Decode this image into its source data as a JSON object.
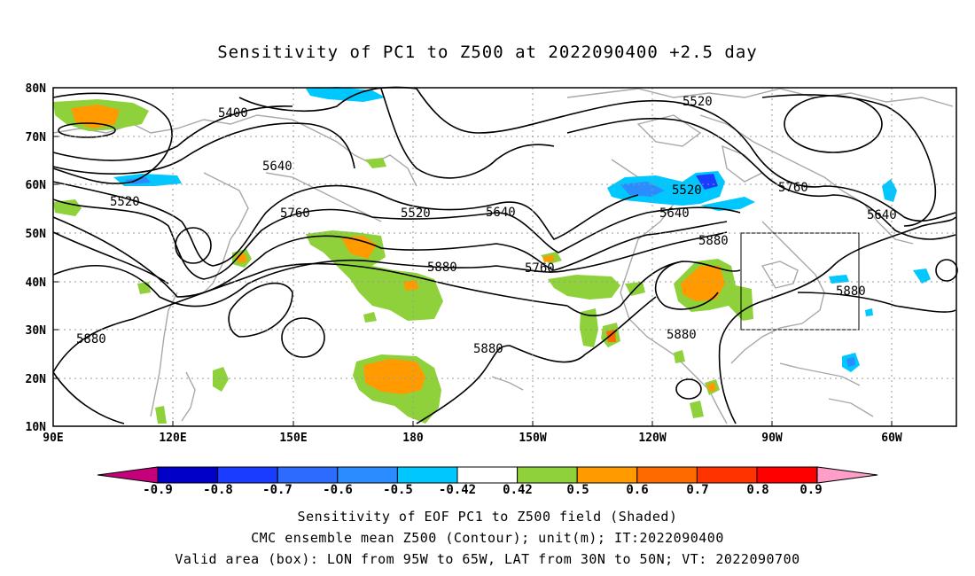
{
  "title": "Sensitivity of PC1 to Z500 at 2022090400 +2.5 day",
  "lat_labels": [
    "80N",
    "70N",
    "60N",
    "50N",
    "40N",
    "30N",
    "20N",
    "10N"
  ],
  "lon_labels": [
    "90E",
    "120E",
    "150E",
    "180",
    "150W",
    "120W",
    "90W",
    "60W"
  ],
  "contour_labels": {
    "c5400": "5400",
    "c5520a": "5520",
    "c5520b": "5520",
    "c5520c": "5520",
    "c5520d": "5520",
    "c5640a": "5640",
    "c5640b": "5640",
    "c5640c": "5640",
    "c5640d": "5640",
    "c5760a": "5760",
    "c5760b": "5760",
    "c5760c": "5760",
    "c5880a": "5880",
    "c5880b": "5880",
    "c5880c": "5880",
    "c5880d": "5880",
    "c5880e": "5880",
    "c5880f": "5880"
  },
  "colorbar": {
    "labels": [
      "-0.9",
      "-0.8",
      "-0.7",
      "-0.6",
      "-0.5",
      "-0.42",
      "0.42",
      "0.5",
      "0.6",
      "0.7",
      "0.8",
      "0.9"
    ],
    "colors": [
      "#0000c8",
      "#1a3cff",
      "#2d6bff",
      "#2b8cff",
      "#00c8ff",
      "#ffffff",
      "#8fd13b",
      "#ff9a00",
      "#ff6a00",
      "#ff3300",
      "#ff0000"
    ],
    "low_end_color": "#c4007a",
    "high_end_color": "#ff9ec8"
  },
  "caption": {
    "line1": "Sensitivity of EOF PC1 to Z500 field (Shaded)",
    "line2": "CMC ensemble mean Z500 (Contour); unit(m); IT:2022090400",
    "line3": "Valid area (box): LON from 95W to 65W, LAT from 30N to 50N; VT: 2022090700"
  }
}
